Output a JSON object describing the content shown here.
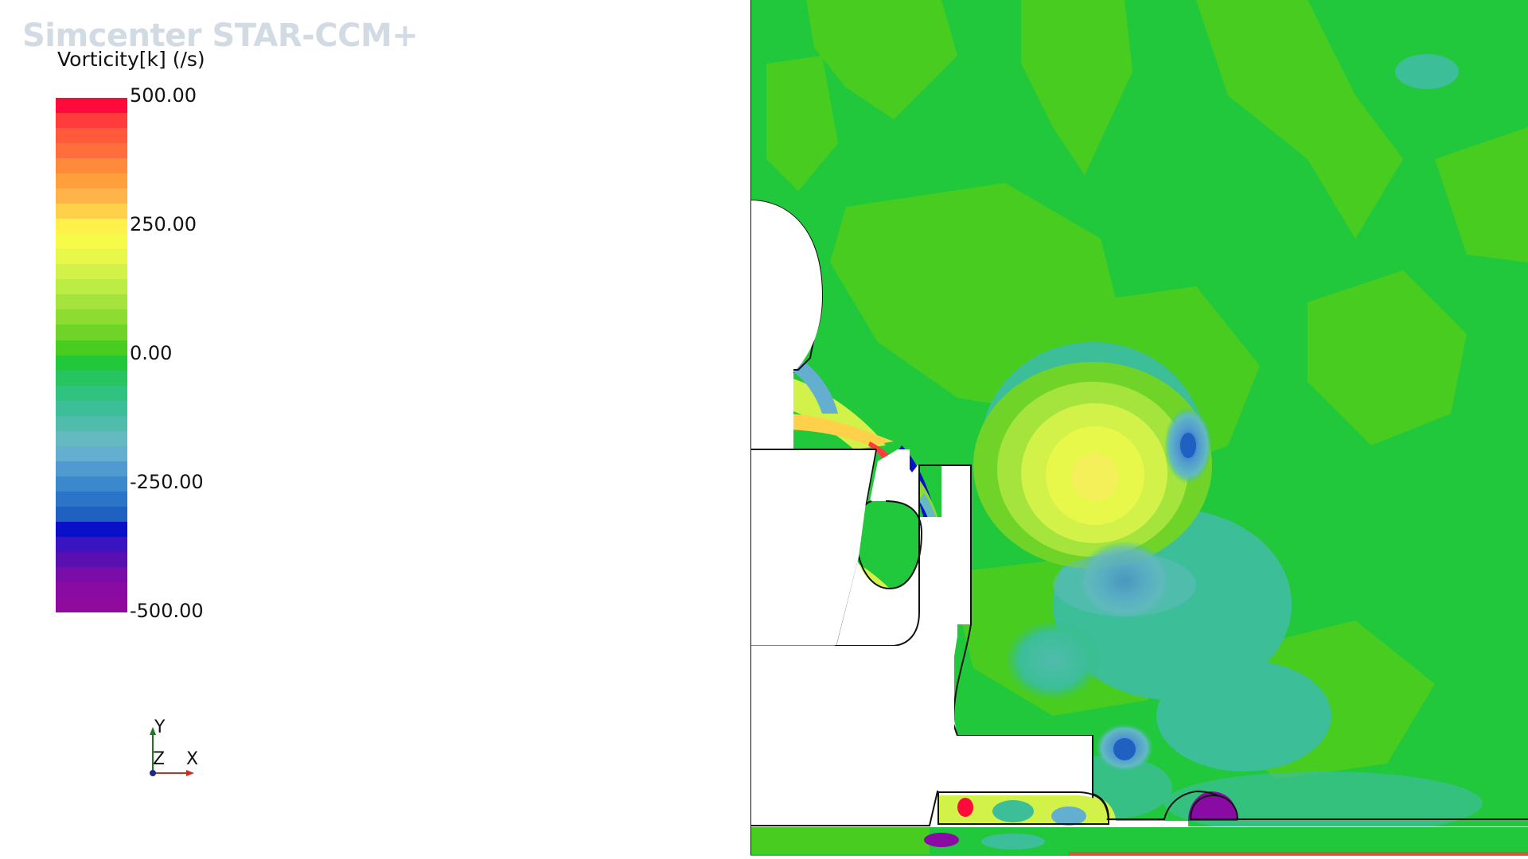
{
  "brand": "Simcenter STAR-CCM+",
  "scalar_bar": {
    "title": "Vorticity[k] (/s)",
    "ticks": [
      "500.00",
      "250.00",
      "0.00",
      "-250.00",
      "-500.00"
    ],
    "range": [
      -500,
      500
    ],
    "colors": [
      "#ff0a3a",
      "#ff3c3c",
      "#ff5a3c",
      "#ff6e3c",
      "#ff8a3c",
      "#ffa03c",
      "#ffb44a",
      "#ffd04a",
      "#fff04a",
      "#f6fb4a",
      "#e8f84a",
      "#d2f24a",
      "#bced44",
      "#a4e43c",
      "#8cdc32",
      "#70d428",
      "#48cc20",
      "#22c83c",
      "#28c460",
      "#30c280",
      "#3cbe98",
      "#50bcac",
      "#64bac0",
      "#64aed0",
      "#509ad0",
      "#3c88cc",
      "#2c74c8",
      "#2060c0",
      "#0a10c8",
      "#3a14c0",
      "#5a10b0",
      "#7a0ca8",
      "#8a0aa4",
      "#900a9e"
    ],
    "colormap_name": "rainbow-style diverging scalar colormap"
  },
  "axes_triad": {
    "y_label": "Y",
    "z_label": "Z",
    "x_label": "X",
    "colors": {
      "y": "#1a7a1a",
      "x": "#c83020",
      "z": "#1a2a8a"
    }
  },
  "scene": {
    "description": "vorticity contour field around building geometry",
    "colors": {
      "background": "#22c83c",
      "field_light": "#48cc20",
      "vortex_core_yellow": "#f0f050",
      "vortex_ring_yellow": "#d2f24a",
      "cool_region": "#3cbe98",
      "cold_region": "#509ad0",
      "deep_blue": "#0a10c8",
      "purple": "#8a0aa4",
      "red": "#ff0a3a",
      "geometry": "#ffffff",
      "outline": "#111111"
    }
  }
}
